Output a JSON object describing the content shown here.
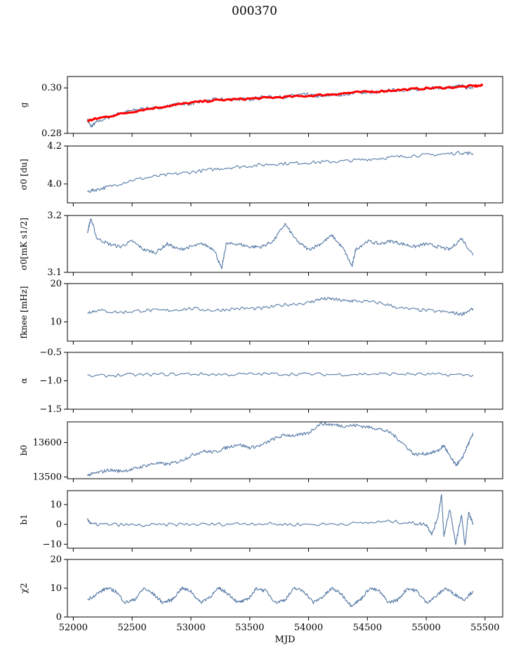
{
  "figure": {
    "title": "000370"
  },
  "x_axis": {
    "label": "MJD",
    "range": [
      51950,
      55650
    ],
    "ticks": [
      52000,
      52500,
      53000,
      53500,
      54000,
      54500,
      55000,
      55500
    ],
    "tick_labels": [
      "52000",
      "52500",
      "53000",
      "53500",
      "54000",
      "54500",
      "55000",
      "55500"
    ]
  },
  "colors": {
    "series": "#4c72a0",
    "fit": "#ff0000"
  },
  "chart_data": [
    {
      "type": "line",
      "panel": "g",
      "ylabel": "g",
      "ylim": [
        0.28,
        0.305
      ],
      "yticks": [
        0.28,
        0.3
      ],
      "ytick_labels": [
        "0.28",
        "0.30"
      ],
      "series": [
        {
          "name": "",
          "color": "#4c72a0",
          "x": [
            52120,
            52150,
            52200,
            52300,
            52400,
            52500,
            52600,
            52700,
            52800,
            52900,
            53000,
            53100,
            53200,
            53300,
            53400,
            53500,
            53600,
            53700,
            53800,
            53900,
            54000,
            54100,
            54200,
            54300,
            54400,
            54500,
            54600,
            54700,
            54800,
            54900,
            55000,
            55100,
            55200,
            55300,
            55350,
            55400
          ],
          "y": [
            0.286,
            0.283,
            0.285,
            0.287,
            0.289,
            0.29,
            0.291,
            0.291,
            0.292,
            0.293,
            0.293,
            0.294,
            0.295,
            0.295,
            0.295,
            0.295,
            0.296,
            0.296,
            0.296,
            0.297,
            0.297,
            0.296,
            0.297,
            0.297,
            0.298,
            0.298,
            0.298,
            0.299,
            0.299,
            0.299,
            0.3,
            0.3,
            0.3,
            0.301,
            0.3,
            0.3
          ]
        },
        {
          "name": "",
          "color": "#ff0000",
          "x": [
            52120,
            52200,
            52400,
            52600,
            52800,
            53000,
            53200,
            53400,
            53600,
            53800,
            54000,
            54200,
            54400,
            54600,
            54800,
            55000,
            55200,
            55400,
            55480
          ],
          "y": [
            0.2855,
            0.2865,
            0.2885,
            0.2905,
            0.292,
            0.2935,
            0.2945,
            0.295,
            0.2955,
            0.296,
            0.2965,
            0.2972,
            0.298,
            0.2985,
            0.2992,
            0.2998,
            0.3002,
            0.3008,
            0.301
          ]
        }
      ]
    },
    {
      "type": "line",
      "panel": "sigma0",
      "ylabel": "σ0 [du]",
      "ylim": [
        3.9,
        4.2
      ],
      "yticks": [
        4.0,
        4.2
      ],
      "ytick_labels": [
        "4.0",
        "4.2"
      ],
      "series": [
        {
          "name": "",
          "color": "#4c72a0",
          "x": [
            52120,
            52200,
            52300,
            52500,
            52700,
            52900,
            53100,
            53300,
            53500,
            53700,
            53900,
            54100,
            54300,
            54500,
            54700,
            54900,
            55100,
            55300,
            55400
          ],
          "y": [
            3.96,
            3.97,
            3.985,
            4.02,
            4.04,
            4.055,
            4.07,
            4.085,
            4.095,
            4.105,
            4.11,
            4.115,
            4.12,
            4.13,
            4.14,
            4.15,
            4.155,
            4.165,
            4.16
          ]
        }
      ]
    },
    {
      "type": "line",
      "panel": "sigma0_mK",
      "ylabel": "σ0[mK s1/2]",
      "ylim": [
        3.1,
        3.2
      ],
      "yticks": [
        3.1,
        3.2
      ],
      "ytick_labels": [
        "3.1",
        "3.2"
      ],
      "series": [
        {
          "name": "",
          "color": "#4c72a0",
          "x": [
            52120,
            52150,
            52200,
            52300,
            52400,
            52500,
            52600,
            52700,
            52800,
            52900,
            53000,
            53100,
            53200,
            53260,
            53300,
            53400,
            53500,
            53600,
            53700,
            53800,
            53900,
            54000,
            54100,
            54200,
            54300,
            54370,
            54400,
            54500,
            54600,
            54700,
            54800,
            54900,
            55000,
            55100,
            55200,
            55300,
            55400
          ],
          "y": [
            3.17,
            3.195,
            3.16,
            3.15,
            3.145,
            3.155,
            3.14,
            3.135,
            3.15,
            3.14,
            3.145,
            3.15,
            3.14,
            3.105,
            3.15,
            3.15,
            3.145,
            3.145,
            3.155,
            3.185,
            3.155,
            3.14,
            3.15,
            3.165,
            3.14,
            3.11,
            3.14,
            3.155,
            3.15,
            3.155,
            3.15,
            3.145,
            3.15,
            3.145,
            3.14,
            3.16,
            3.13
          ]
        }
      ]
    },
    {
      "type": "line",
      "panel": "fknee",
      "ylabel": "fknee [mHz]",
      "ylim": [
        5,
        20
      ],
      "yticks": [
        10,
        20
      ],
      "ytick_labels": [
        "10",
        "20"
      ],
      "series": [
        {
          "name": "",
          "color": "#4c72a0",
          "x": [
            52120,
            52200,
            52400,
            52600,
            52800,
            53000,
            53200,
            53400,
            53600,
            53800,
            54000,
            54100,
            54200,
            54300,
            54400,
            54600,
            54800,
            55000,
            55200,
            55300,
            55400
          ],
          "y": [
            12.5,
            13,
            12.5,
            13,
            13,
            13.5,
            13,
            13.5,
            13.5,
            14.5,
            15,
            16,
            16,
            15.5,
            15.5,
            15,
            13.5,
            13,
            12.5,
            12,
            13.5
          ]
        }
      ]
    },
    {
      "type": "line",
      "panel": "alpha",
      "ylabel": "α",
      "ylim": [
        -1.5,
        -0.5
      ],
      "yticks": [
        -1.5,
        -1.0,
        -0.5
      ],
      "ytick_labels": [
        "−1.5",
        "−1.0",
        "−0.5"
      ],
      "series": [
        {
          "name": "",
          "color": "#4c72a0",
          "x": [
            52120,
            52400,
            52700,
            53000,
            53300,
            53600,
            53900,
            54200,
            54500,
            54800,
            55100,
            55400
          ],
          "y": [
            -0.92,
            -0.9,
            -0.89,
            -0.88,
            -0.89,
            -0.88,
            -0.88,
            -0.89,
            -0.88,
            -0.88,
            -0.89,
            -0.9
          ]
        }
      ]
    },
    {
      "type": "line",
      "panel": "b0",
      "ylabel": "b0",
      "ylim": [
        13495,
        13660
      ],
      "yticks": [
        13500,
        13600
      ],
      "ytick_labels": [
        "13500",
        "13600"
      ],
      "series": [
        {
          "name": "",
          "color": "#4c72a0",
          "x": [
            52120,
            52200,
            52300,
            52400,
            52500,
            52600,
            52700,
            52800,
            52900,
            53000,
            53100,
            53200,
            53300,
            53400,
            53500,
            53600,
            53700,
            53800,
            53900,
            54000,
            54100,
            54200,
            54300,
            54400,
            54500,
            54600,
            54700,
            54800,
            54900,
            55000,
            55100,
            55150,
            55200,
            55250,
            55300,
            55350,
            55400
          ],
          "y": [
            13505,
            13512,
            13520,
            13517,
            13522,
            13532,
            13540,
            13537,
            13545,
            13562,
            13575,
            13572,
            13585,
            13595,
            13585,
            13592,
            13610,
            13622,
            13620,
            13628,
            13655,
            13652,
            13648,
            13650,
            13645,
            13640,
            13628,
            13598,
            13565,
            13568,
            13575,
            13592,
            13560,
            13535,
            13550,
            13590,
            13625
          ]
        }
      ]
    },
    {
      "type": "line",
      "panel": "b1",
      "ylabel": "b1",
      "ylim": [
        -12,
        17
      ],
      "yticks": [
        -10,
        0,
        10
      ],
      "ytick_labels": [
        "−10",
        "0",
        "10"
      ],
      "series": [
        {
          "name": "",
          "color": "#4c72a0",
          "x": [
            52120,
            52150,
            52300,
            52600,
            52900,
            53200,
            53500,
            53800,
            54100,
            54400,
            54700,
            54900,
            55000,
            55050,
            55100,
            55130,
            55150,
            55200,
            55250,
            55300,
            55330,
            55360,
            55400
          ],
          "y": [
            3,
            0,
            0,
            -0.5,
            0,
            0,
            0.5,
            0,
            0,
            0.5,
            1.5,
            0.5,
            0,
            -5,
            4,
            15,
            -6,
            8,
            -10,
            5,
            -11,
            6,
            0
          ]
        }
      ]
    },
    {
      "type": "line",
      "panel": "chi2",
      "ylabel": "χ2",
      "ylim": [
        0,
        20
      ],
      "yticks": [
        0,
        10,
        20
      ],
      "ytick_labels": [
        "0",
        "10",
        "20"
      ],
      "series": [
        {
          "name": "",
          "color": "#4c72a0",
          "x": [
            52120,
            52200,
            52280,
            52360,
            52440,
            52520,
            52600,
            52680,
            52760,
            52840,
            52920,
            53000,
            53080,
            53160,
            53240,
            53320,
            53400,
            53480,
            53560,
            53640,
            53720,
            53800,
            53880,
            53960,
            54040,
            54120,
            54200,
            54280,
            54360,
            54440,
            54520,
            54600,
            54680,
            54760,
            54840,
            54920,
            55000,
            55080,
            55160,
            55240,
            55320,
            55400
          ],
          "y": [
            6,
            8,
            10,
            9,
            5,
            6,
            10,
            8,
            5,
            6,
            10,
            9,
            5,
            7,
            10,
            8,
            5,
            6,
            10,
            9,
            5,
            6,
            10,
            9,
            5,
            7,
            10,
            8,
            4,
            6,
            10,
            9,
            5,
            6,
            10,
            9,
            5,
            7,
            10,
            8,
            6,
            9
          ]
        }
      ]
    }
  ]
}
